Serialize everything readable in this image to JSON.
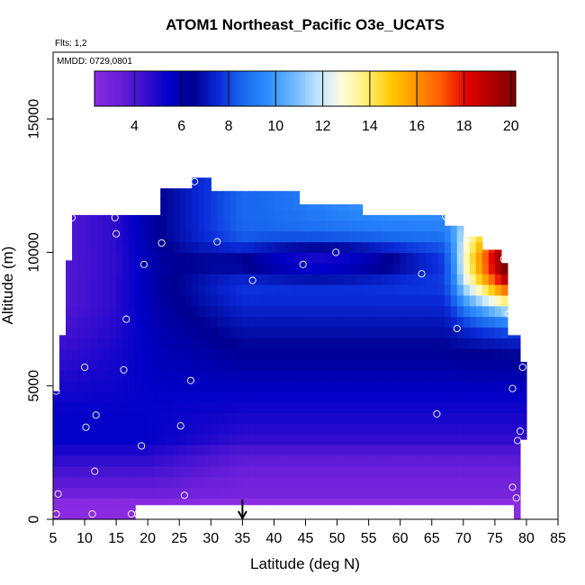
{
  "chart_data": {
    "type": "heatmap",
    "title": "ATOM1 Northeast_Pacific O3e_UCATS",
    "annotations": {
      "flights": "Flts: 1,2",
      "dates": "MMDD: 0729,0801"
    },
    "xlabel": "Latitude (deg N)",
    "ylabel": "Altitude (m)",
    "xlim": [
      5,
      85
    ],
    "ylim": [
      0,
      17500
    ],
    "x_ticks": [
      "5",
      "10",
      "15",
      "20",
      "25",
      "30",
      "35",
      "40",
      "45",
      "50",
      "55",
      "60",
      "65",
      "70",
      "75",
      "80",
      "85"
    ],
    "y_ticks": [
      "0",
      "5000",
      "10000",
      "15000"
    ],
    "colorbar": {
      "range": [
        2.3,
        20.2
      ],
      "ticks": [
        "4",
        "6",
        "8",
        "10",
        "12",
        "14",
        "16",
        "18",
        "20"
      ],
      "colors": [
        "#8a2be2",
        "#6a1fd8",
        "#3a0fcf",
        "#0000c8",
        "#000090",
        "#0a2ad8",
        "#1a6aee",
        "#2f8fff",
        "#6ab8ff",
        "#bfe3ff",
        "#fffde0",
        "#ffef70",
        "#ffc800",
        "#ff9400",
        "#ff5a00",
        "#e60000",
        "#b00000",
        "#800000"
      ]
    },
    "marker_latitude": 35,
    "observation_points": [
      {
        "lat": 5.5,
        "alt": 200
      },
      {
        "lat": 5.8,
        "alt": 950
      },
      {
        "lat": 5.5,
        "alt": 4800
      },
      {
        "lat": 8.0,
        "alt": 11300
      },
      {
        "lat": 10.0,
        "alt": 5700
      },
      {
        "lat": 10.2,
        "alt": 3450
      },
      {
        "lat": 11.2,
        "alt": 200
      },
      {
        "lat": 11.6,
        "alt": 1800
      },
      {
        "lat": 11.8,
        "alt": 3900
      },
      {
        "lat": 14.8,
        "alt": 11300
      },
      {
        "lat": 15.0,
        "alt": 10700
      },
      {
        "lat": 16.2,
        "alt": 5600
      },
      {
        "lat": 16.6,
        "alt": 7500
      },
      {
        "lat": 17.4,
        "alt": 200
      },
      {
        "lat": 18.4,
        "alt": 200
      },
      {
        "lat": 19.0,
        "alt": 2750
      },
      {
        "lat": 19.4,
        "alt": 9550
      },
      {
        "lat": 22.2,
        "alt": 10350
      },
      {
        "lat": 25.2,
        "alt": 3500
      },
      {
        "lat": 25.8,
        "alt": 900
      },
      {
        "lat": 26.8,
        "alt": 5200
      },
      {
        "lat": 27.4,
        "alt": 12650
      },
      {
        "lat": 31.0,
        "alt": 10400
      },
      {
        "lat": 36.6,
        "alt": 8950
      },
      {
        "lat": 44.6,
        "alt": 9550
      },
      {
        "lat": 49.8,
        "alt": 10000
      },
      {
        "lat": 63.4,
        "alt": 9200
      },
      {
        "lat": 65.8,
        "alt": 3950
      },
      {
        "lat": 67.2,
        "alt": 11350
      },
      {
        "lat": 69.0,
        "alt": 7150
      },
      {
        "lat": 76.4,
        "alt": 9750
      },
      {
        "lat": 77.2,
        "alt": 7700
      },
      {
        "lat": 77.8,
        "alt": 4900
      },
      {
        "lat": 77.8,
        "alt": 1200
      },
      {
        "lat": 78.4,
        "alt": 800
      },
      {
        "lat": 78.6,
        "alt": 2950
      },
      {
        "lat": 79.0,
        "alt": 3300
      },
      {
        "lat": 79.4,
        "alt": 5700
      }
    ]
  }
}
